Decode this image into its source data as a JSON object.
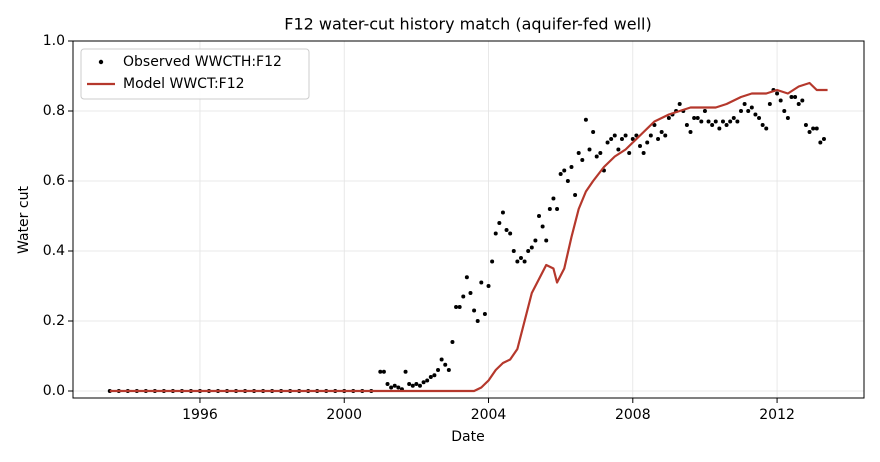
{
  "chart_data": {
    "type": "scatter-line",
    "title": "F12  water-cut history match (aquifer-fed well)",
    "xlabel": "Date",
    "ylabel": "Water cut",
    "xlim": [
      1992.48,
      2014.41
    ],
    "ylim": [
      -0.02,
      1.0
    ],
    "xticks": [
      1996,
      2000,
      2004,
      2008,
      2012
    ],
    "yticks": [
      {
        "value": 0,
        "label": "0.0"
      },
      0.2,
      0.4,
      0.6,
      0.8,
      {
        "value": 1,
        "label": "1.0"
      }
    ],
    "grid": true,
    "legend": "upper left",
    "series": [
      {
        "name": "Observed WWCTH:F12",
        "color": "#000000",
        "kind": "points",
        "x": [
          1993.5,
          1993.75,
          1994,
          1994.25,
          1994.5,
          1994.75,
          1995,
          1995.25,
          1995.5,
          1995.75,
          1996,
          1996.25,
          1996.5,
          1996.75,
          1997,
          1997.25,
          1997.5,
          1997.75,
          1998,
          1998.25,
          1998.5,
          1998.75,
          1999,
          1999.25,
          1999.5,
          1999.75,
          2000,
          2000.25,
          2000.5,
          2000.75,
          2001.0,
          2001.1,
          2001.2,
          2001.3,
          2001.4,
          2001.5,
          2001.6,
          2001.7,
          2001.8,
          2001.9,
          2002.0,
          2002.1,
          2002.2,
          2002.3,
          2002.4,
          2002.5,
          2002.6,
          2002.7,
          2002.8,
          2002.9,
          2003.0,
          2003.1,
          2003.2,
          2003.3,
          2003.4,
          2003.5,
          2003.6,
          2003.7,
          2003.8,
          2003.9,
          2004.0,
          2004.1,
          2004.2,
          2004.3,
          2004.4,
          2004.5,
          2004.6,
          2004.7,
          2004.8,
          2004.9,
          2005.0,
          2005.1,
          2005.2,
          2005.3,
          2005.4,
          2005.5,
          2005.6,
          2005.7,
          2005.8,
          2005.9,
          2006.0,
          2006.1,
          2006.2,
          2006.3,
          2006.4,
          2006.5,
          2006.6,
          2006.7,
          2006.8,
          2006.9,
          2007.0,
          2007.1,
          2007.2,
          2007.3,
          2007.4,
          2007.5,
          2007.6,
          2007.7,
          2007.8,
          2007.9,
          2008.0,
          2008.1,
          2008.2,
          2008.3,
          2008.4,
          2008.5,
          2008.6,
          2008.7,
          2008.8,
          2008.9,
          2009.0,
          2009.1,
          2009.2,
          2009.3,
          2009.4,
          2009.5,
          2009.6,
          2009.7,
          2009.8,
          2009.9,
          2010.0,
          2010.1,
          2010.2,
          2010.3,
          2010.4,
          2010.5,
          2010.6,
          2010.7,
          2010.8,
          2010.9,
          2011.0,
          2011.1,
          2011.2,
          2011.3,
          2011.4,
          2011.5,
          2011.6,
          2011.7,
          2011.8,
          2011.9,
          2012.0,
          2012.1,
          2012.2,
          2012.3,
          2012.4,
          2012.5,
          2012.6,
          2012.7,
          2012.8,
          2012.9,
          2013.0,
          2013.1,
          2013.2,
          2013.3
        ],
        "values": [
          0,
          0,
          0,
          0,
          0,
          0,
          0,
          0,
          0,
          0,
          0,
          0,
          0,
          0,
          0,
          0,
          0,
          0,
          0,
          0,
          0,
          0,
          0,
          0,
          0,
          0,
          0,
          0,
          0,
          0,
          0.055,
          0.055,
          0.02,
          0.01,
          0.015,
          0.01,
          0.005,
          0.055,
          0.02,
          0.015,
          0.02,
          0.015,
          0.025,
          0.03,
          0.04,
          0.045,
          0.06,
          0.09,
          0.075,
          0.06,
          0.14,
          0.24,
          0.24,
          0.27,
          0.325,
          0.28,
          0.23,
          0.2,
          0.31,
          0.22,
          0.3,
          0.37,
          0.45,
          0.48,
          0.51,
          0.46,
          0.45,
          0.4,
          0.37,
          0.38,
          0.37,
          0.4,
          0.41,
          0.43,
          0.5,
          0.47,
          0.43,
          0.52,
          0.55,
          0.52,
          0.62,
          0.63,
          0.6,
          0.64,
          0.56,
          0.68,
          0.66,
          0.775,
          0.69,
          0.74,
          0.67,
          0.68,
          0.63,
          0.71,
          0.72,
          0.73,
          0.69,
          0.72,
          0.73,
          0.68,
          0.72,
          0.73,
          0.7,
          0.68,
          0.71,
          0.73,
          0.76,
          0.72,
          0.74,
          0.73,
          0.78,
          0.79,
          0.8,
          0.82,
          0.8,
          0.76,
          0.74,
          0.78,
          0.78,
          0.77,
          0.8,
          0.77,
          0.76,
          0.77,
          0.75,
          0.77,
          0.76,
          0.77,
          0.78,
          0.77,
          0.8,
          0.82,
          0.8,
          0.81,
          0.79,
          0.78,
          0.76,
          0.75,
          0.82,
          0.86,
          0.85,
          0.83,
          0.8,
          0.78,
          0.84,
          0.84,
          0.82,
          0.83,
          0.76,
          0.74,
          0.75,
          0.75,
          0.71,
          0.72
        ]
      },
      {
        "name": "Model WWCT:F12",
        "color": "#b5382c",
        "kind": "line",
        "x": [
          1993.5,
          2003.6,
          2003.8,
          2004.0,
          2004.2,
          2004.4,
          2004.6,
          2004.8,
          2005.0,
          2005.2,
          2005.4,
          2005.6,
          2005.8,
          2005.9,
          2006.1,
          2006.3,
          2006.5,
          2006.7,
          2006.9,
          2007.2,
          2007.5,
          2007.8,
          2008.0,
          2008.3,
          2008.6,
          2009.0,
          2009.3,
          2009.6,
          2010.0,
          2010.3,
          2010.6,
          2011.0,
          2011.3,
          2011.7,
          2012.0,
          2012.3,
          2012.6,
          2012.9,
          2013.1,
          2013.4
        ],
        "values": [
          0,
          0,
          0.01,
          0.03,
          0.06,
          0.08,
          0.09,
          0.12,
          0.2,
          0.28,
          0.32,
          0.36,
          0.35,
          0.31,
          0.35,
          0.44,
          0.52,
          0.57,
          0.6,
          0.64,
          0.67,
          0.69,
          0.71,
          0.74,
          0.77,
          0.79,
          0.8,
          0.81,
          0.81,
          0.81,
          0.82,
          0.84,
          0.85,
          0.85,
          0.86,
          0.85,
          0.87,
          0.88,
          0.86,
          0.86
        ]
      }
    ]
  }
}
